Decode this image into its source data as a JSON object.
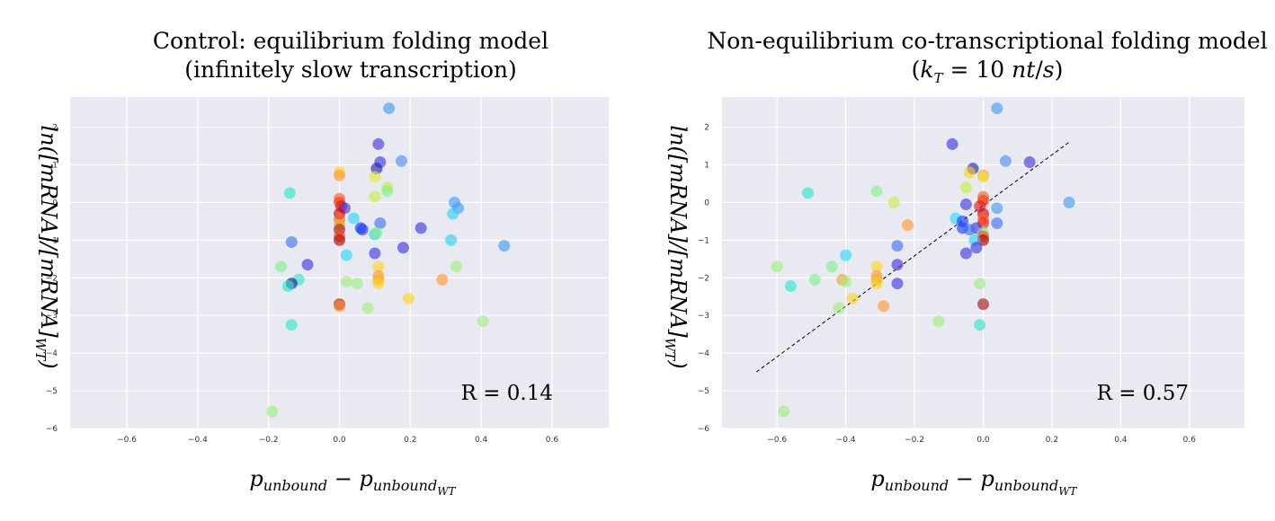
{
  "chart_data": [
    {
      "type": "scatter",
      "title": [
        "Control: equilibrium folding model",
        "(infinitely slow transcription)"
      ],
      "xlabel": "p_unbound − p_unbound_WT",
      "ylabel": "ln([mRNA]/[mRNA]_WT)",
      "xlim": [
        -0.76,
        0.76
      ],
      "ylim": [
        -6,
        2.8
      ],
      "xticks": [
        "−0.6",
        "−0.4",
        "−0.2",
        "0.0",
        "0.2",
        "0.4",
        "0.6"
      ],
      "yticks": [
        "2",
        "1",
        "0",
        "−1",
        "−2",
        "−3",
        "−4",
        "−5",
        "−6"
      ],
      "grid": true,
      "annotation": "R = 0.14",
      "points": [
        {
          "x": 0.14,
          "y": 2.5,
          "color": "#3d9bf2"
        },
        {
          "x": 0.11,
          "y": 1.55,
          "color": "#3a32e0"
        },
        {
          "x": 0.175,
          "y": 1.1,
          "color": "#4a8af2"
        },
        {
          "x": 0.115,
          "y": 1.07,
          "color": "#3a32e0"
        },
        {
          "x": 0.105,
          "y": 0.9,
          "color": "#1f1fb0"
        },
        {
          "x": 0.0,
          "y": 0.8,
          "color": "#ffd21a"
        },
        {
          "x": 0.0,
          "y": 0.72,
          "color": "#ff9a2a"
        },
        {
          "x": 0.1,
          "y": 0.68,
          "color": "#e6ea2a"
        },
        {
          "x": 0.135,
          "y": 0.4,
          "color": "#c4ef3a"
        },
        {
          "x": 0.135,
          "y": 0.3,
          "color": "#7cf28c"
        },
        {
          "x": 0.1,
          "y": 0.15,
          "color": "#c4ef3a"
        },
        {
          "x": -0.14,
          "y": 0.25,
          "color": "#29e6c8"
        },
        {
          "x": 0.0,
          "y": 0.1,
          "color": "#ff5a1a"
        },
        {
          "x": 0.0,
          "y": 0.0,
          "color": "#ff3a10"
        },
        {
          "x": 0.005,
          "y": -0.1,
          "color": "#e01010"
        },
        {
          "x": 0.015,
          "y": -0.15,
          "color": "#3a32e0"
        },
        {
          "x": 0.0,
          "y": -0.3,
          "color": "#cc0000"
        },
        {
          "x": 0.0,
          "y": -0.45,
          "color": "#ff6020"
        },
        {
          "x": 0.325,
          "y": 0.0,
          "color": "#3d9bf2"
        },
        {
          "x": 0.335,
          "y": -0.15,
          "color": "#3d9bf2"
        },
        {
          "x": 0.32,
          "y": -0.3,
          "color": "#29d0f0"
        },
        {
          "x": 0.04,
          "y": -0.42,
          "color": "#20d8ff"
        },
        {
          "x": 0.115,
          "y": -0.55,
          "color": "#3a6ef0"
        },
        {
          "x": 0.0,
          "y": -0.6,
          "color": "#e0b020"
        },
        {
          "x": 0.0,
          "y": -0.72,
          "color": "#aa1010"
        },
        {
          "x": 0.06,
          "y": -0.68,
          "color": "#1a3aff"
        },
        {
          "x": 0.065,
          "y": -0.72,
          "color": "#1a3aff"
        },
        {
          "x": 0.23,
          "y": -0.68,
          "color": "#3a32e0"
        },
        {
          "x": 0.1,
          "y": -0.85,
          "color": "#29d0f0"
        },
        {
          "x": 0.105,
          "y": -0.8,
          "color": "#7cf28c"
        },
        {
          "x": 0.0,
          "y": -0.9,
          "color": "#ff4010"
        },
        {
          "x": 0.0,
          "y": -1.0,
          "color": "#aa0000"
        },
        {
          "x": -0.135,
          "y": -1.05,
          "color": "#3a6ef0"
        },
        {
          "x": 0.315,
          "y": -1.0,
          "color": "#29d0f0"
        },
        {
          "x": 0.465,
          "y": -1.15,
          "color": "#3d9bf2"
        },
        {
          "x": 0.18,
          "y": -1.2,
          "color": "#3a32e0"
        },
        {
          "x": 0.1,
          "y": -1.35,
          "color": "#3a32e0"
        },
        {
          "x": 0.02,
          "y": -1.4,
          "color": "#20d8ff"
        },
        {
          "x": -0.09,
          "y": -1.65,
          "color": "#3a32e0"
        },
        {
          "x": -0.165,
          "y": -1.7,
          "color": "#7cf28c"
        },
        {
          "x": 0.11,
          "y": -1.7,
          "color": "#ffd21a"
        },
        {
          "x": 0.33,
          "y": -1.7,
          "color": "#9df07a"
        },
        {
          "x": 0.11,
          "y": -1.95,
          "color": "#ff9a2a"
        },
        {
          "x": 0.11,
          "y": -2.05,
          "color": "#ffaa20"
        },
        {
          "x": 0.11,
          "y": -2.15,
          "color": "#ffd21a"
        },
        {
          "x": 0.29,
          "y": -2.05,
          "color": "#ff9a2a"
        },
        {
          "x": -0.115,
          "y": -2.05,
          "color": "#29e6c8"
        },
        {
          "x": 0.02,
          "y": -2.1,
          "color": "#9df07a"
        },
        {
          "x": 0.05,
          "y": -2.15,
          "color": "#9df07a"
        },
        {
          "x": -0.135,
          "y": -2.15,
          "color": "#0a1a8a"
        },
        {
          "x": -0.145,
          "y": -2.22,
          "color": "#29e6c8"
        },
        {
          "x": 0.195,
          "y": -2.55,
          "color": "#ffd21a"
        },
        {
          "x": 0.0,
          "y": -2.7,
          "color": "#aa1010"
        },
        {
          "x": 0.0,
          "y": -2.75,
          "color": "#ff8a2a"
        },
        {
          "x": 0.08,
          "y": -2.8,
          "color": "#9df07a"
        },
        {
          "x": -0.135,
          "y": -3.25,
          "color": "#29e6c8"
        },
        {
          "x": 0.405,
          "y": -3.15,
          "color": "#9df07a"
        },
        {
          "x": -0.19,
          "y": -5.55,
          "color": "#9df07a"
        }
      ]
    },
    {
      "type": "scatter",
      "title": [
        "Non-equilibrium co-transcriptional folding model",
        "(k_T = 10 nt/s)"
      ],
      "xlabel": "p_unbound − p_unbound_WT",
      "ylabel": "ln([mRNA]/[mRNA]_WT)",
      "xlim": [
        -0.76,
        0.76
      ],
      "ylim": [
        -6,
        2.8
      ],
      "xticks": [
        "−0.6",
        "−0.4",
        "−0.2",
        "0.0",
        "0.2",
        "0.4",
        "0.6"
      ],
      "yticks": [
        "2",
        "1",
        "0",
        "−1",
        "−2",
        "−3",
        "−4",
        "−5",
        "−6"
      ],
      "grid": true,
      "annotation": "R = 0.57",
      "fit_line": {
        "x": [
          -0.66,
          0.25
        ],
        "y": [
          -4.5,
          1.6
        ]
      },
      "points": [
        {
          "x": 0.04,
          "y": 2.5,
          "color": "#3d9bf2"
        },
        {
          "x": -0.09,
          "y": 1.55,
          "color": "#3a32e0"
        },
        {
          "x": 0.065,
          "y": 1.1,
          "color": "#4a8af2"
        },
        {
          "x": 0.135,
          "y": 1.07,
          "color": "#3a32e0"
        },
        {
          "x": -0.03,
          "y": 0.9,
          "color": "#1f1fb0"
        },
        {
          "x": -0.04,
          "y": 0.8,
          "color": "#ffd21a"
        },
        {
          "x": 0.0,
          "y": 0.72,
          "color": "#ff9a2a"
        },
        {
          "x": 0.0,
          "y": 0.68,
          "color": "#e6ea2a"
        },
        {
          "x": -0.05,
          "y": 0.4,
          "color": "#c4ef3a"
        },
        {
          "x": -0.51,
          "y": 0.25,
          "color": "#29e6c8"
        },
        {
          "x": -0.31,
          "y": 0.3,
          "color": "#7cf28c"
        },
        {
          "x": 0.0,
          "y": 0.15,
          "color": "#ff5a1a"
        },
        {
          "x": 0.0,
          "y": 0.05,
          "color": "#ff3a10"
        },
        {
          "x": -0.26,
          "y": 0.0,
          "color": "#c4ef3a"
        },
        {
          "x": 0.25,
          "y": 0.0,
          "color": "#3d9bf2"
        },
        {
          "x": -0.05,
          "y": -0.05,
          "color": "#3a32e0"
        },
        {
          "x": -0.01,
          "y": -0.1,
          "color": "#e01010"
        },
        {
          "x": 0.04,
          "y": -0.15,
          "color": "#3d9bf2"
        },
        {
          "x": 0.0,
          "y": -0.3,
          "color": "#cc0000"
        },
        {
          "x": -0.08,
          "y": -0.42,
          "color": "#20d8ff"
        },
        {
          "x": 0.0,
          "y": -0.45,
          "color": "#ff6020"
        },
        {
          "x": 0.04,
          "y": -0.55,
          "color": "#3a6ef0"
        },
        {
          "x": 0.0,
          "y": -0.55,
          "color": "#ff2010"
        },
        {
          "x": -0.22,
          "y": -0.6,
          "color": "#ff9a2a"
        },
        {
          "x": -0.06,
          "y": -0.5,
          "color": "#1a3aff"
        },
        {
          "x": -0.06,
          "y": -0.68,
          "color": "#1a3aff"
        },
        {
          "x": -0.02,
          "y": -0.68,
          "color": "#3a32e0"
        },
        {
          "x": -0.04,
          "y": -0.72,
          "color": "#3a6ef0"
        },
        {
          "x": 0.0,
          "y": -0.8,
          "color": "#7cf28c"
        },
        {
          "x": 0.0,
          "y": -0.9,
          "color": "#ff4010"
        },
        {
          "x": 0.0,
          "y": -1.0,
          "color": "#aa0000"
        },
        {
          "x": -0.025,
          "y": -1.0,
          "color": "#29d0f0"
        },
        {
          "x": -0.25,
          "y": -1.15,
          "color": "#3a6ef0"
        },
        {
          "x": -0.02,
          "y": -1.2,
          "color": "#3a32e0"
        },
        {
          "x": -0.05,
          "y": -1.35,
          "color": "#3a32e0"
        },
        {
          "x": -0.4,
          "y": -1.4,
          "color": "#20d8ff"
        },
        {
          "x": -0.6,
          "y": -1.7,
          "color": "#9df07a"
        },
        {
          "x": -0.44,
          "y": -1.7,
          "color": "#7cf28c"
        },
        {
          "x": -0.31,
          "y": -1.7,
          "color": "#ffd21a"
        },
        {
          "x": -0.25,
          "y": -1.65,
          "color": "#3a32e0"
        },
        {
          "x": -0.31,
          "y": -1.95,
          "color": "#ff9a2a"
        },
        {
          "x": -0.31,
          "y": -2.05,
          "color": "#ffaa20"
        },
        {
          "x": -0.31,
          "y": -2.15,
          "color": "#ffd21a"
        },
        {
          "x": -0.41,
          "y": -2.05,
          "color": "#ff9a2a"
        },
        {
          "x": -0.49,
          "y": -2.05,
          "color": "#7cf28c"
        },
        {
          "x": -0.4,
          "y": -2.1,
          "color": "#9df07a"
        },
        {
          "x": -0.56,
          "y": -2.22,
          "color": "#29e6c8"
        },
        {
          "x": -0.25,
          "y": -2.15,
          "color": "#3a32e0"
        },
        {
          "x": -0.01,
          "y": -2.15,
          "color": "#9df07a"
        },
        {
          "x": -0.38,
          "y": -2.55,
          "color": "#ffd21a"
        },
        {
          "x": 0.0,
          "y": -2.7,
          "color": "#aa1010"
        },
        {
          "x": -0.29,
          "y": -2.75,
          "color": "#ff9a2a"
        },
        {
          "x": -0.42,
          "y": -2.8,
          "color": "#9df07a"
        },
        {
          "x": -0.01,
          "y": -3.25,
          "color": "#29e6c8"
        },
        {
          "x": -0.13,
          "y": -3.15,
          "color": "#9df07a"
        },
        {
          "x": -0.58,
          "y": -5.55,
          "color": "#9df07a"
        }
      ]
    }
  ]
}
